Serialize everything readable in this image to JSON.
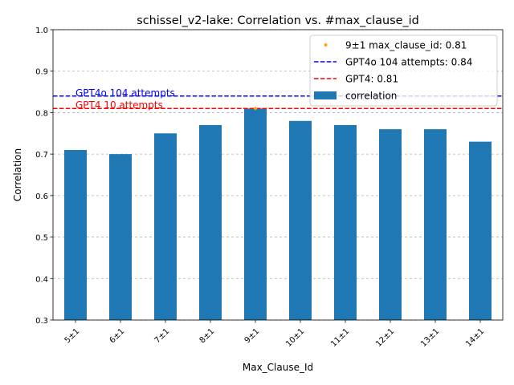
{
  "chart_data": {
    "type": "bar",
    "title": "schissel_v2-lake: Correlation vs. #max_clause_id",
    "xlabel": "Max_Clause_Id",
    "ylabel": "Correlation",
    "ylim": [
      0.3,
      1.0
    ],
    "yticks": [
      "0.3",
      "0.4",
      "0.5",
      "0.6",
      "0.7",
      "0.8",
      "0.9",
      "1.0"
    ],
    "grid": "y-dashed",
    "legend_position": "top-right",
    "categories": [
      "5±1",
      "6±1",
      "7±1",
      "8±1",
      "9±1",
      "10±1",
      "11±1",
      "12±1",
      "13±1",
      "14±1"
    ],
    "series": [
      {
        "name": "correlation",
        "color": "#1f77b4",
        "values": [
          0.71,
          0.7,
          0.75,
          0.77,
          0.81,
          0.78,
          0.77,
          0.76,
          0.76,
          0.73
        ]
      }
    ],
    "highlight": {
      "category": "9±1",
      "value": 0.81,
      "color": "#ffa500",
      "legend_label": "9±1 max_clause_id: 0.81"
    },
    "reference_lines": [
      {
        "value": 0.84,
        "color": "#0000ff",
        "legend_label": "GPT4o 104 attempts: 0.84",
        "annotation": "GPT4o 104 attempts"
      },
      {
        "value": 0.81,
        "color": "#ff0000",
        "legend_label": "GPT4: 0.81",
        "annotation": "GPT4 10 attempts"
      }
    ]
  }
}
